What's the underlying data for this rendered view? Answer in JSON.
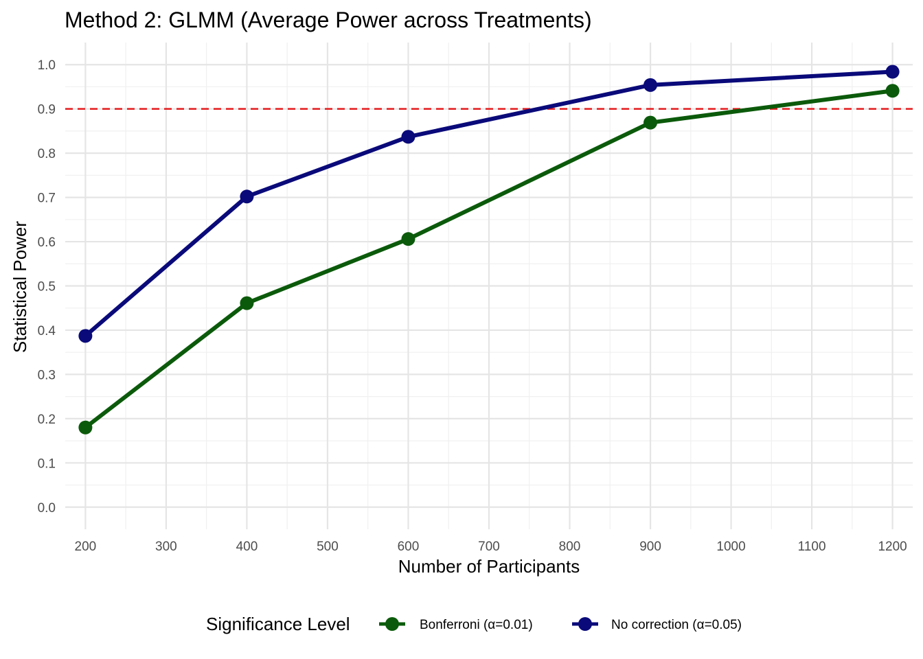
{
  "chart_data": {
    "type": "line",
    "title": "Method 2: GLMM (Average Power across Treatments)",
    "xlabel": "Number of Participants",
    "ylabel": "Statistical Power",
    "x": [
      200,
      400,
      600,
      900,
      1200
    ],
    "xlim": [
      175,
      1225
    ],
    "ylim": [
      -0.05,
      1.05
    ],
    "xticks": [
      200,
      300,
      400,
      500,
      600,
      700,
      800,
      900,
      1000,
      1100,
      1200
    ],
    "xtick_labels": [
      "200",
      "300",
      "400",
      "500",
      "600",
      "700",
      "800",
      "900",
      "1000",
      "1100",
      "1200"
    ],
    "yticks": [
      0.0,
      0.1,
      0.2,
      0.3,
      0.4,
      0.5,
      0.6,
      0.7,
      0.8,
      0.9,
      1.0
    ],
    "ytick_labels": [
      "0.0",
      "0.1",
      "0.2",
      "0.3",
      "0.4",
      "0.5",
      "0.6",
      "0.7",
      "0.8",
      "0.9",
      "1.0"
    ],
    "grid": true,
    "reference_line": {
      "y": 0.9,
      "color": "#e41a1c",
      "style": "dashed"
    },
    "legend": {
      "title": "Significance Level",
      "position": "bottom"
    },
    "series": [
      {
        "name": "Bonferroni (α=0.01)",
        "color": "#0b5a0b",
        "values": [
          0.18,
          0.461,
          0.606,
          0.869,
          0.941
        ]
      },
      {
        "name": "No correction (α=0.05)",
        "color": "#0a0a7a",
        "values": [
          0.387,
          0.702,
          0.837,
          0.954,
          0.984
        ]
      }
    ]
  }
}
